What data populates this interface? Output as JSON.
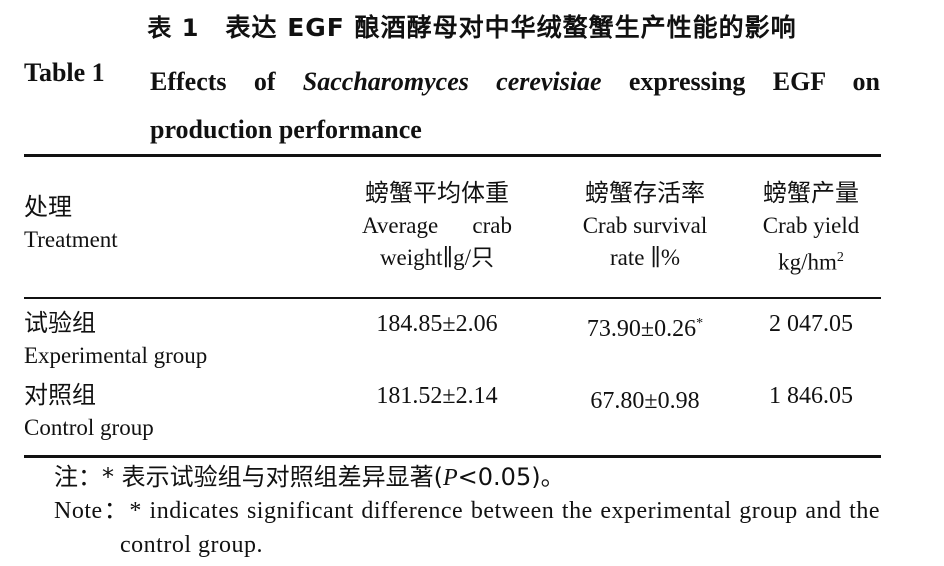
{
  "caption": {
    "zh_label": "表 1",
    "zh_text": "表达 EGF 酿酒酵母对中华绒螯蟹生产性能的影响",
    "en_label": "Table 1",
    "en_prefix": "Effects of ",
    "en_species": "Saccharomyces cerevisiae",
    "en_suffix": " expressing EGF on production performance"
  },
  "table": {
    "headers": [
      {
        "zh": "处理",
        "en": "Treatment"
      },
      {
        "zh": "螃蟹平均体重",
        "en": "Average crab weight∥g/只"
      },
      {
        "zh": "螃蟹存活率",
        "en": "Crab survival rate ∥%"
      },
      {
        "zh": "螃蟹产量",
        "en": "Crab yield kg/hm",
        "sup": "2"
      }
    ],
    "rows": [
      {
        "treatment_zh": "试验组",
        "treatment_en": "Experimental group",
        "weight": "184.85±2.06",
        "survival": "73.90±0.26",
        "survival_mark": "*",
        "yield": "2 047.05"
      },
      {
        "treatment_zh": "对照组",
        "treatment_en": "Control group",
        "weight": "181.52±2.14",
        "survival": "67.80±0.98",
        "survival_mark": "",
        "yield": "1 846.05"
      }
    ]
  },
  "note": {
    "zh": "注：* 表示试验组与对照组差异显著(",
    "zh_p": "P",
    "zh_tail": "<0.05)。",
    "en": "Note：*  indicates significant difference between the experimental group and the control group."
  }
}
